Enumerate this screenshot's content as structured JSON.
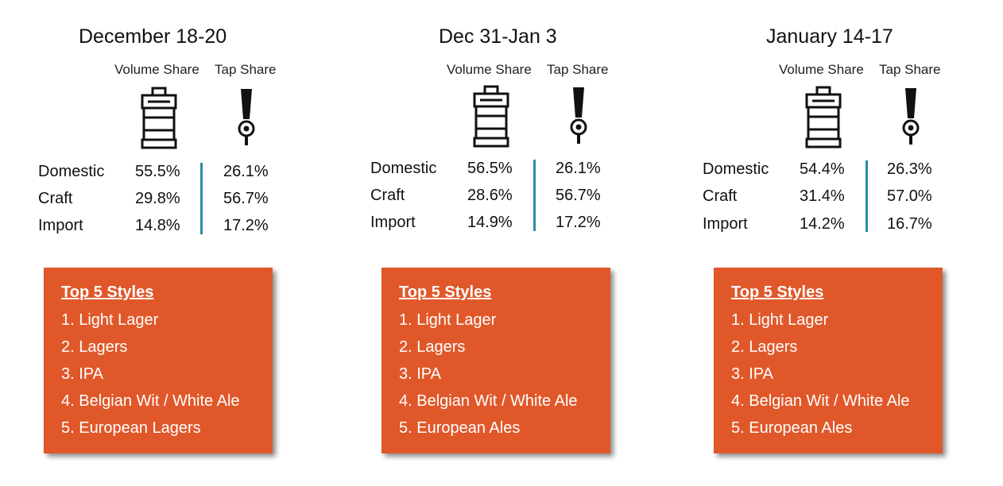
{
  "column_headers": {
    "volume_share": "Volume Share",
    "tap_share": "Tap Share"
  },
  "colors": {
    "accent_box": "#e0582a",
    "divider": "#2a8d9c"
  },
  "icons": {
    "volume": "keg-icon",
    "tap": "beer-tap-icon"
  },
  "box_title": "Top 5 Styles",
  "periods": [
    {
      "title": "December 18-20",
      "rows": [
        {
          "label": "Domestic",
          "volume": "55.5%",
          "tap": "26.1%"
        },
        {
          "label": "Craft",
          "volume": "29.8%",
          "tap": "56.7%"
        },
        {
          "label": "Import",
          "volume": "14.8%",
          "tap": "17.2%"
        }
      ],
      "styles": [
        "1. Light Lager",
        "2. Lagers",
        "3. IPA",
        "4. Belgian Wit / White Ale",
        "5. European Lagers"
      ]
    },
    {
      "title": "Dec 31-Jan 3",
      "rows": [
        {
          "label": "Domestic",
          "volume": "56.5%",
          "tap": "26.1%"
        },
        {
          "label": "Craft",
          "volume": "28.6%",
          "tap": "56.7%"
        },
        {
          "label": "Import",
          "volume": "14.9%",
          "tap": "17.2%"
        }
      ],
      "styles": [
        "1. Light Lager",
        "2. Lagers",
        "3. IPA",
        "4. Belgian Wit / White Ale",
        "5. European Ales"
      ]
    },
    {
      "title": "January 14-17",
      "rows": [
        {
          "label": "Domestic",
          "volume": "54.4%",
          "tap": "26.3%"
        },
        {
          "label": "Craft",
          "volume": "31.4%",
          "tap": "57.0%"
        },
        {
          "label": "Import",
          "volume": "14.2%",
          "tap": "16.7%"
        }
      ],
      "styles": [
        "1. Light Lager",
        "2. Lagers",
        "3. IPA",
        "4. Belgian Wit / White Ale",
        "5. European Ales"
      ]
    }
  ]
}
